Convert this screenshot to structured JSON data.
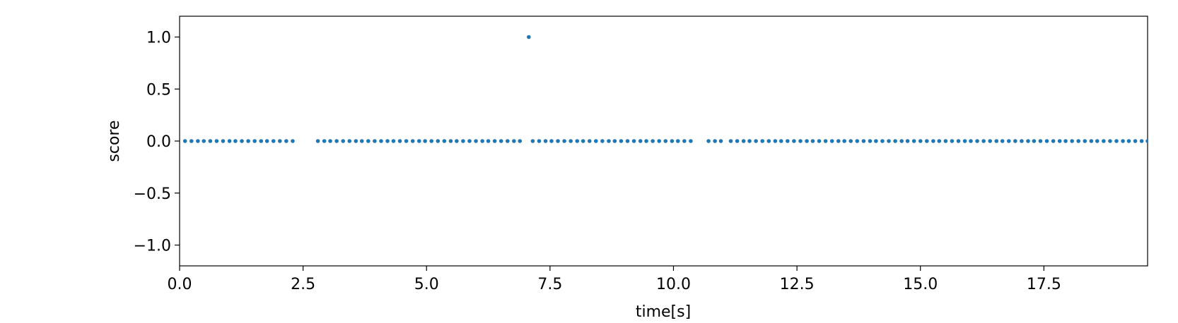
{
  "chart_data": {
    "type": "scatter",
    "xlabel": "time[s]",
    "ylabel": "score",
    "color": "#1f77b4",
    "xlim": [
      0,
      19.6
    ],
    "ylim": [
      -1.2,
      1.2
    ],
    "xticks": [
      {
        "value": 0,
        "label": "0.0"
      },
      2.5,
      {
        "value": 5,
        "label": "5.0"
      },
      7.5,
      {
        "value": 10,
        "label": "10.0"
      },
      12.5,
      {
        "value": 15,
        "label": "15.0"
      },
      17.5
    ],
    "yticks": [
      {
        "value": -1,
        "label": "−1.0"
      },
      {
        "value": -0.5,
        "label": "−0.5"
      },
      {
        "value": 0,
        "label": "0.0"
      },
      0.5,
      {
        "value": 1,
        "label": "1.0"
      }
    ],
    "x": [
      0.11,
      0.24,
      0.37,
      0.49,
      0.62,
      0.75,
      0.88,
      1.01,
      1.13,
      1.26,
      1.39,
      1.52,
      1.65,
      1.77,
      1.9,
      2.03,
      2.16,
      2.29,
      2.8,
      2.93,
      3.05,
      3.18,
      3.31,
      3.44,
      3.57,
      3.69,
      3.82,
      3.95,
      4.08,
      4.21,
      4.33,
      4.46,
      4.59,
      4.72,
      4.85,
      4.97,
      5.1,
      5.23,
      5.36,
      5.49,
      5.61,
      5.74,
      5.87,
      6.0,
      6.13,
      6.25,
      6.38,
      6.51,
      6.64,
      6.77,
      6.89,
      7.07,
      7.15,
      7.28,
      7.41,
      7.53,
      7.66,
      7.79,
      7.92,
      8.05,
      8.17,
      8.3,
      8.43,
      8.56,
      8.69,
      8.81,
      8.94,
      9.07,
      9.2,
      9.33,
      9.45,
      9.58,
      9.71,
      9.84,
      9.97,
      10.09,
      10.22,
      10.35,
      10.71,
      10.84,
      10.96,
      11.16,
      11.29,
      11.42,
      11.54,
      11.67,
      11.8,
      11.93,
      12.06,
      12.18,
      12.31,
      12.44,
      12.57,
      12.7,
      12.82,
      12.95,
      13.08,
      13.21,
      13.34,
      13.46,
      13.59,
      13.72,
      13.85,
      13.98,
      14.1,
      14.23,
      14.36,
      14.49,
      14.62,
      14.74,
      14.87,
      15.0,
      15.13,
      15.26,
      15.38,
      15.51,
      15.64,
      15.77,
      15.9,
      16.02,
      16.15,
      16.28,
      16.41,
      16.54,
      16.66,
      16.79,
      16.92,
      17.05,
      17.18,
      17.3,
      17.43,
      17.56,
      17.69,
      17.82,
      17.94,
      18.07,
      18.2,
      18.33,
      18.46,
      18.58,
      18.71,
      18.84,
      18.97,
      19.1,
      19.22,
      19.35,
      19.48,
      19.6
    ],
    "values": [
      0,
      0,
      0,
      0,
      0,
      0,
      0,
      0,
      0,
      0,
      0,
      0,
      0,
      0,
      0,
      0,
      0,
      0,
      0,
      0,
      0,
      0,
      0,
      0,
      0,
      0,
      0,
      0,
      0,
      0,
      0,
      0,
      0,
      0,
      0,
      0,
      0,
      0,
      0,
      0,
      0,
      0,
      0,
      0,
      0,
      0,
      0,
      0,
      0,
      0,
      0,
      1,
      0,
      0,
      0,
      0,
      0,
      0,
      0,
      0,
      0,
      0,
      0,
      0,
      0,
      0,
      0,
      0,
      0,
      0,
      0,
      0,
      0,
      0,
      0,
      0,
      0,
      0,
      0,
      0,
      0,
      0,
      0,
      0,
      0,
      0,
      0,
      0,
      0,
      0,
      0,
      0,
      0,
      0,
      0,
      0,
      0,
      0,
      0,
      0,
      0,
      0,
      0,
      0,
      0,
      0,
      0,
      0,
      0,
      0,
      0,
      0,
      0,
      0,
      0,
      0,
      0,
      0,
      0,
      0,
      0,
      0,
      0,
      0,
      0,
      0,
      0,
      0,
      0,
      0,
      0,
      0,
      0,
      0,
      0,
      0,
      0,
      0,
      0,
      0,
      0,
      0,
      0,
      0,
      0,
      0,
      0,
      0
    ]
  }
}
